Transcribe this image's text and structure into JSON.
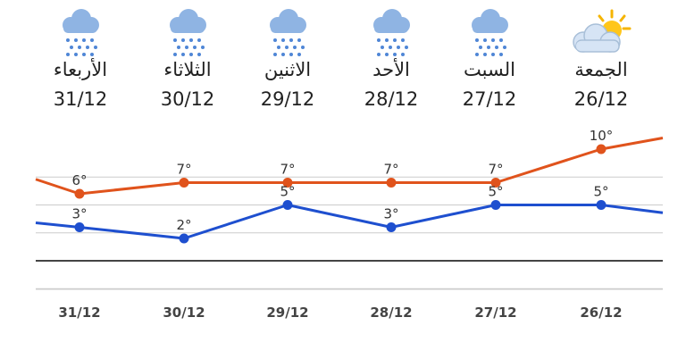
{
  "days": [
    {
      "name": "الجمعة",
      "date": "26/12",
      "icon": "partly-cloudy-icon"
    },
    {
      "name": "السبت",
      "date": "27/12",
      "icon": "rain-cloud-icon"
    },
    {
      "name": "الأحد",
      "date": "28/12",
      "icon": "rain-cloud-icon"
    },
    {
      "name": "الاثنين",
      "date": "29/12",
      "icon": "rain-cloud-icon"
    },
    {
      "name": "الثلاثاء",
      "date": "30/12",
      "icon": "rain-cloud-icon"
    },
    {
      "name": "الأربعاء",
      "date": "31/12",
      "icon": "rain-cloud-icon"
    }
  ],
  "colors": {
    "high": "#e0531c",
    "low": "#1e4fcf",
    "grid": "#cccccc",
    "axis": "#444444"
  },
  "chart_data": {
    "type": "line",
    "categories": [
      "26/12",
      "27/12",
      "28/12",
      "29/12",
      "30/12",
      "31/12"
    ],
    "series": [
      {
        "values": [
          10,
          7,
          7,
          7,
          7,
          6
        ],
        "labels": [
          "10°",
          "7°",
          "7°",
          "7°",
          "7°",
          "6°"
        ]
      },
      {
        "values": [
          5,
          5,
          3,
          5,
          2,
          3
        ],
        "labels": [
          "5°",
          "5°",
          "3°",
          "5°",
          "2°",
          "3°"
        ]
      }
    ],
    "ylim": [
      -2,
      13
    ],
    "grid": true
  }
}
